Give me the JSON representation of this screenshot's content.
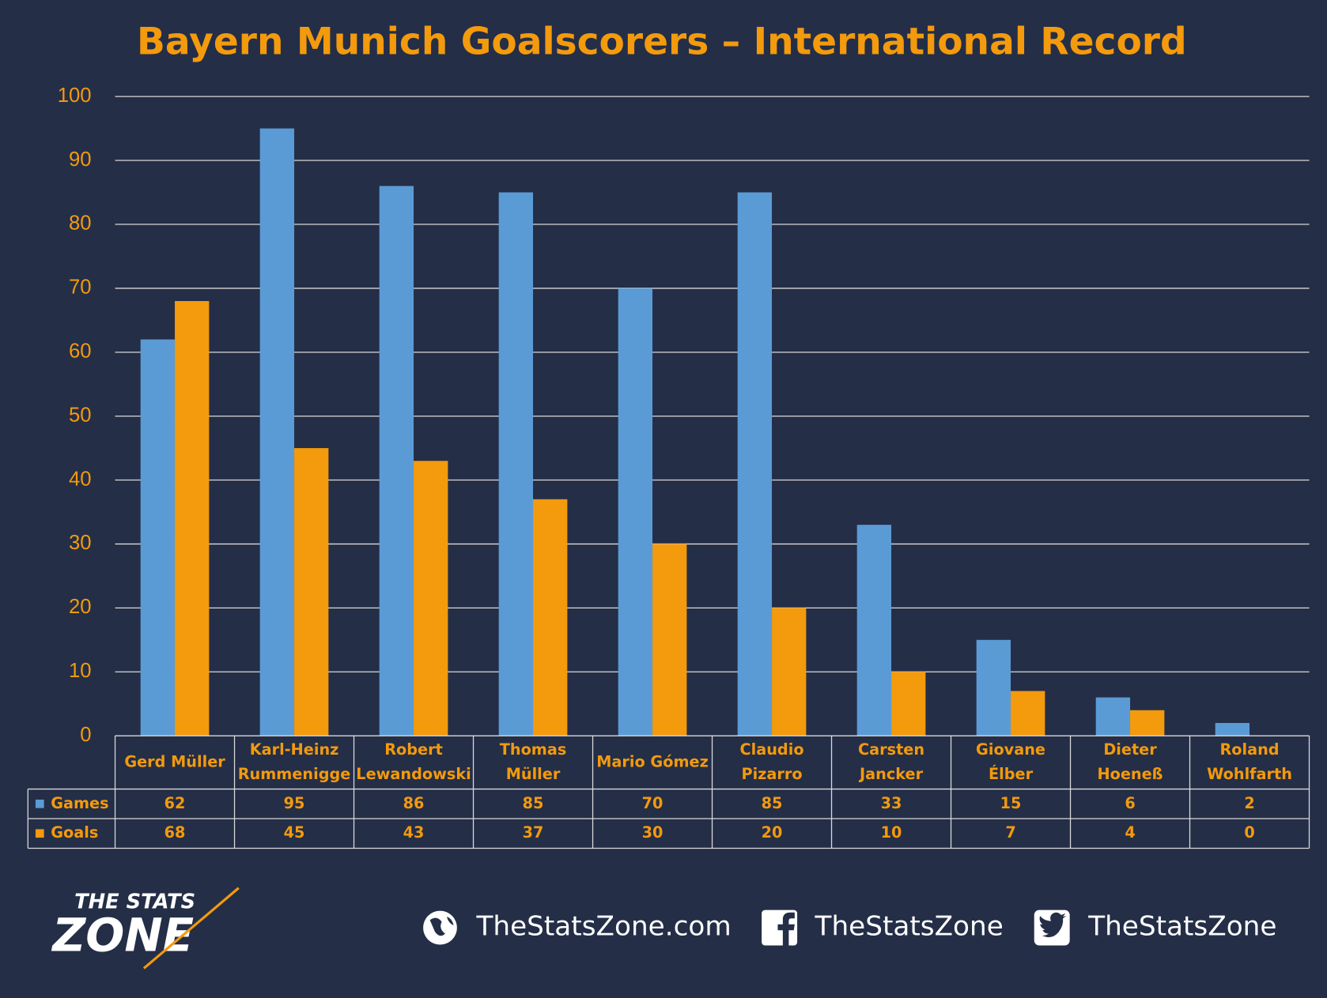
{
  "chart_data": {
    "type": "bar",
    "title": "Bayern Munich Goalscorers – International Record",
    "categories": [
      [
        "Gerd Müller"
      ],
      [
        "Karl-Heinz",
        "Rummenigge"
      ],
      [
        "Robert",
        "Lewandowski"
      ],
      [
        "Thomas",
        "Müller"
      ],
      [
        "Mario Gómez"
      ],
      [
        "Claudio",
        "Pizarro"
      ],
      [
        "Carsten",
        "Jancker"
      ],
      [
        "Giovane",
        "Élber"
      ],
      [
        "Dieter",
        "Hoeneß"
      ],
      [
        "Roland",
        "Wohlfarth"
      ]
    ],
    "series": [
      {
        "name": "Games",
        "color": "#5b9bd5",
        "values": [
          62,
          95,
          86,
          85,
          70,
          85,
          33,
          15,
          6,
          2
        ]
      },
      {
        "name": "Goals",
        "color": "#f39a0d",
        "values": [
          68,
          45,
          43,
          37,
          30,
          20,
          10,
          7,
          4,
          0
        ]
      }
    ],
    "ylim": [
      0,
      100
    ],
    "yticks": [
      0,
      10,
      20,
      30,
      40,
      50,
      60,
      70,
      80,
      90,
      100
    ],
    "grid": true
  },
  "footer": {
    "logo": [
      "THE STATS",
      "ZONE"
    ],
    "website": "TheStatsZone.com",
    "facebook": "TheStatsZone",
    "twitter": "TheStatsZone"
  }
}
